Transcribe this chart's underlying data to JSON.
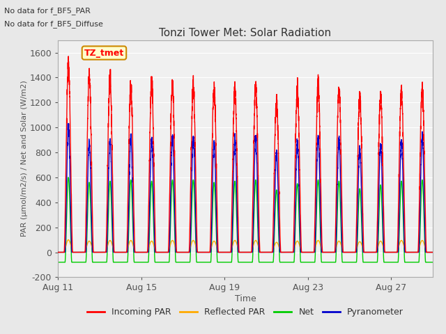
{
  "title": "Tonzi Tower Met: Solar Radiation",
  "ylabel": "PAR (μmol/m2/s) / Net and Solar (W/m2)",
  "xlabel": "Time",
  "annotation_lines": [
    "No data for f_BF5_PAR",
    "No data for f_BF5_Diffuse"
  ],
  "legend_label": "TZ_tmet",
  "legend_entries": [
    "Incoming PAR",
    "Reflected PAR",
    "Net",
    "Pyranometer"
  ],
  "legend_colors": [
    "#ff0000",
    "#ffaa00",
    "#00cc00",
    "#0000cc"
  ],
  "ylim": [
    -200,
    1700
  ],
  "yticks": [
    -200,
    0,
    200,
    400,
    600,
    800,
    1000,
    1200,
    1400,
    1600
  ],
  "n_days": 18,
  "peak_incoming": 1450,
  "peak_reflected": 100,
  "peak_net": 600,
  "peak_pyranometer": 900,
  "night_net": -80,
  "bg_color": "#e8e8e8",
  "plot_bg_color": "#f0f0f0",
  "grid_color": "#ffffff",
  "xtick_labels": [
    "Aug 11",
    "Aug 15",
    "Aug 19",
    "Aug 23",
    "Aug 27"
  ],
  "xtick_positions": [
    0,
    4,
    8,
    12,
    16
  ]
}
